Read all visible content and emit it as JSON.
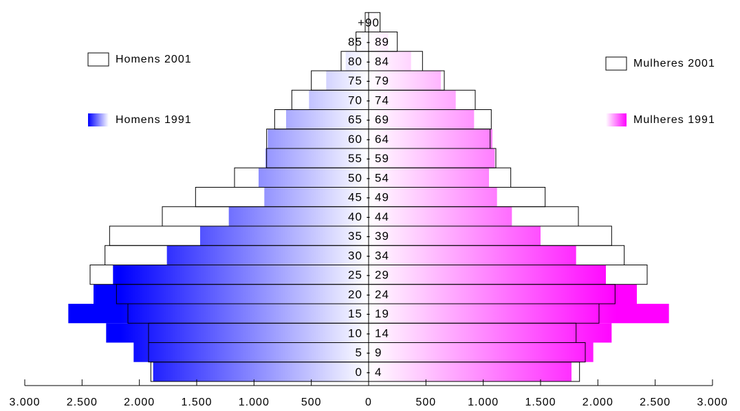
{
  "chart_data": {
    "type": "bar",
    "subtype": "population-pyramid",
    "title": "",
    "xlabel": "",
    "ylabel": "",
    "xlim": [
      -3000,
      3000
    ],
    "x_ticks": [
      -3000,
      -2500,
      -2000,
      -1500,
      -1000,
      -500,
      0,
      500,
      1000,
      1500,
      2000,
      2500,
      3000
    ],
    "x_tick_labels": [
      "3.000",
      "2.500",
      "2.000",
      "1.500",
      "1.000",
      "500",
      "0",
      "500",
      "1.000",
      "1.500",
      "2.000",
      "2.500",
      "3.000"
    ],
    "categories": [
      "0 - 4",
      "5 - 9",
      "10 - 14",
      "15 - 19",
      "20 - 24",
      "25 - 29",
      "30 - 34",
      "35 - 39",
      "40 - 44",
      "45 - 49",
      "50 - 54",
      "55 - 59",
      "60 - 64",
      "65 - 69",
      "70 - 74",
      "75 - 79",
      "80 - 84",
      "85 - 89",
      "+90"
    ],
    "series": [
      {
        "name": "Homens 2001",
        "side": "left",
        "style": "outline",
        "values": [
          1900,
          1920,
          1920,
          2100,
          2200,
          2430,
          2300,
          2260,
          1800,
          1510,
          1170,
          890,
          890,
          820,
          670,
          500,
          240,
          110,
          30
        ]
      },
      {
        "name": "Mulheres 2001",
        "side": "right",
        "style": "outline",
        "values": [
          1840,
          1890,
          1810,
          2010,
          2150,
          2430,
          2230,
          2120,
          1830,
          1540,
          1240,
          1110,
          1060,
          1070,
          930,
          660,
          470,
          250,
          100
        ]
      },
      {
        "name": "Homens 1991",
        "side": "left",
        "style": "gradient",
        "values": [
          1880,
          2050,
          2290,
          2620,
          2400,
          2230,
          1760,
          1470,
          1220,
          910,
          960,
          900,
          880,
          720,
          520,
          370,
          200,
          60,
          10
        ]
      },
      {
        "name": "Mulheres 1991",
        "side": "right",
        "style": "gradient",
        "values": [
          1770,
          1960,
          2120,
          2620,
          2340,
          2070,
          1810,
          1500,
          1250,
          1120,
          1050,
          1100,
          1080,
          920,
          760,
          630,
          370,
          170,
          60
        ]
      }
    ],
    "colors": {
      "men": "#0000ff",
      "women": "#ff00ff",
      "outline": "#000000",
      "gradient_center": "#ffffff"
    },
    "legend": {
      "placement": "top-left and top-right",
      "entries": [
        "Homens 2001",
        "Homens 1991",
        "Mulheres 2001",
        "Mulheres 1991"
      ]
    },
    "grid": false
  }
}
